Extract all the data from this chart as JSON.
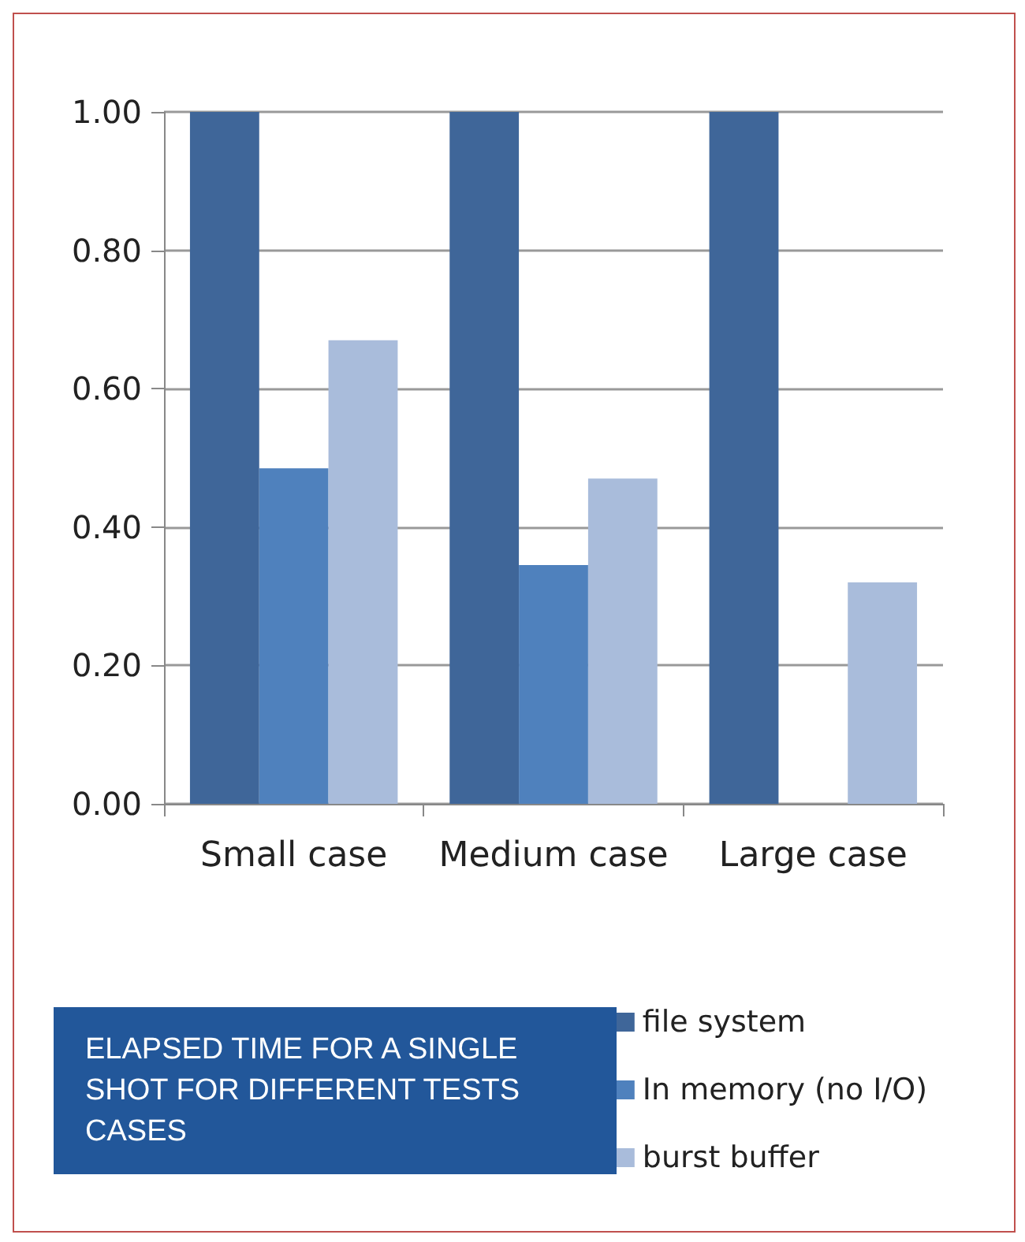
{
  "chart_data": {
    "type": "bar",
    "title": "ELAPSED TIME FOR A SINGLE SHOT FOR DIFFERENT TESTS CASES",
    "categories": [
      "Small case",
      "Medium case",
      "Large case"
    ],
    "series": [
      {
        "name": "file system",
        "color": "#3f6699",
        "values": [
          1.0,
          1.0,
          1.0
        ]
      },
      {
        "name": "In memory (no I/O)",
        "color": "#4f81bd",
        "values": [
          0.485,
          0.345,
          null
        ]
      },
      {
        "name": "burst buffer",
        "color": "#a9bcdb",
        "values": [
          0.67,
          0.47,
          0.32
        ]
      }
    ],
    "ylim": [
      0,
      1
    ],
    "yticks": [
      {
        "value": 0,
        "label": "0.00"
      },
      {
        "value": 0.2,
        "label": "0.20"
      },
      {
        "value": 0.4,
        "label": "0.40"
      },
      {
        "value": 0.6,
        "label": "0.60"
      },
      {
        "value": 0.8,
        "label": "0.80"
      },
      {
        "value": 1,
        "label": "1.00"
      }
    ],
    "grid": "y",
    "legend": "bottom right"
  }
}
